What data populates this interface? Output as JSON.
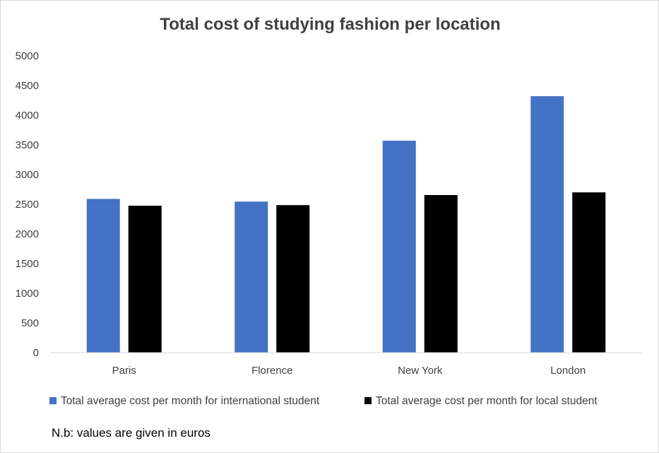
{
  "chart_data": {
    "type": "bar",
    "title": "Total cost of studying fashion per location",
    "categories": [
      "Paris",
      "Florence",
      "New York",
      "London"
    ],
    "series": [
      {
        "name": "Total average cost per month for international student",
        "color": "#4472C4",
        "values": [
          2590,
          2545,
          3570,
          4320
        ]
      },
      {
        "name": "Total average cost per month for local student",
        "color": "#000000",
        "values": [
          2475,
          2485,
          2655,
          2700
        ]
      }
    ],
    "ylim": [
      0,
      5000
    ],
    "yticks": [
      0,
      500,
      1000,
      1500,
      2000,
      2500,
      3000,
      3500,
      4000,
      4500,
      5000
    ],
    "grid": false,
    "legend": "bottom",
    "note": "N.b: values are given in euros"
  }
}
